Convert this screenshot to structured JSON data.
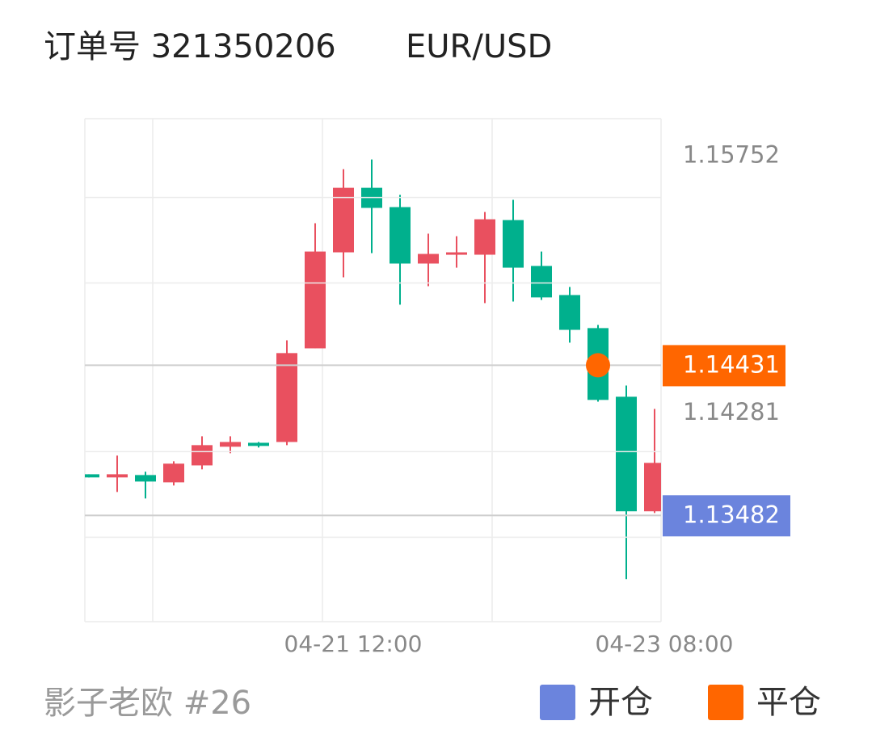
{
  "header": {
    "order": "订单号 321350206",
    "symbol": "EUR/USD"
  },
  "chart_data": {
    "type": "candlestick",
    "categories": [
      null,
      null,
      null,
      null,
      null,
      null,
      null,
      null,
      null,
      "04-21 12:00",
      null,
      null,
      null,
      null,
      null,
      null,
      null,
      null,
      null,
      null,
      "04-23 08:00"
    ],
    "open": [
      1.13742,
      1.13722,
      1.13737,
      1.13691,
      1.13798,
      1.13916,
      1.13941,
      1.13946,
      1.14538,
      1.15145,
      1.15553,
      1.15431,
      1.15074,
      1.1513,
      1.1513,
      1.15349,
      1.15059,
      1.14875,
      1.14666,
      1.14232,
      1.13508
    ],
    "high": [
      1.13742,
      1.1386,
      1.13758,
      1.13824,
      1.13982,
      1.13982,
      1.13946,
      1.14589,
      1.15329,
      1.15671,
      1.15732,
      1.15508,
      1.15263,
      1.15247,
      1.154,
      1.15477,
      1.1515,
      1.14926,
      1.14686,
      1.14303,
      1.14155
    ],
    "low": [
      1.13722,
      1.1363,
      1.13589,
      1.13671,
      1.13773,
      1.13875,
      1.13911,
      1.13926,
      1.14538,
      1.14987,
      1.1514,
      1.14814,
      1.14931,
      1.15048,
      1.14824,
      1.14834,
      1.14844,
      1.14574,
      1.14201,
      1.13079,
      1.13497
    ],
    "close": [
      1.13722,
      1.13742,
      1.13696,
      1.13809,
      1.13926,
      1.13946,
      1.13921,
      1.14508,
      1.1515,
      1.15553,
      1.15426,
      1.15074,
      1.15135,
      1.15145,
      1.15354,
      1.15048,
      1.1486,
      1.14655,
      1.14212,
      1.13508,
      1.13814
    ],
    "up_color": "#e9505f",
    "down_color": "#00b08d",
    "ylim": [
      1.1281,
      1.1599
    ],
    "yticks": [
      1.15752,
      1.14281
    ],
    "ygrid": [
      1.15492,
      1.14951,
      1.13885,
      1.13344
    ],
    "open_price": 1.13482,
    "open_color": "#6b84dd",
    "close_price": 1.14431,
    "close_color": "#ff6600"
  },
  "footer": {
    "author": "影子老欧 #26"
  },
  "legend": [
    {
      "name": "开仓",
      "color": "#6b84dd"
    },
    {
      "name": "平仓",
      "color": "#ff6600"
    }
  ]
}
